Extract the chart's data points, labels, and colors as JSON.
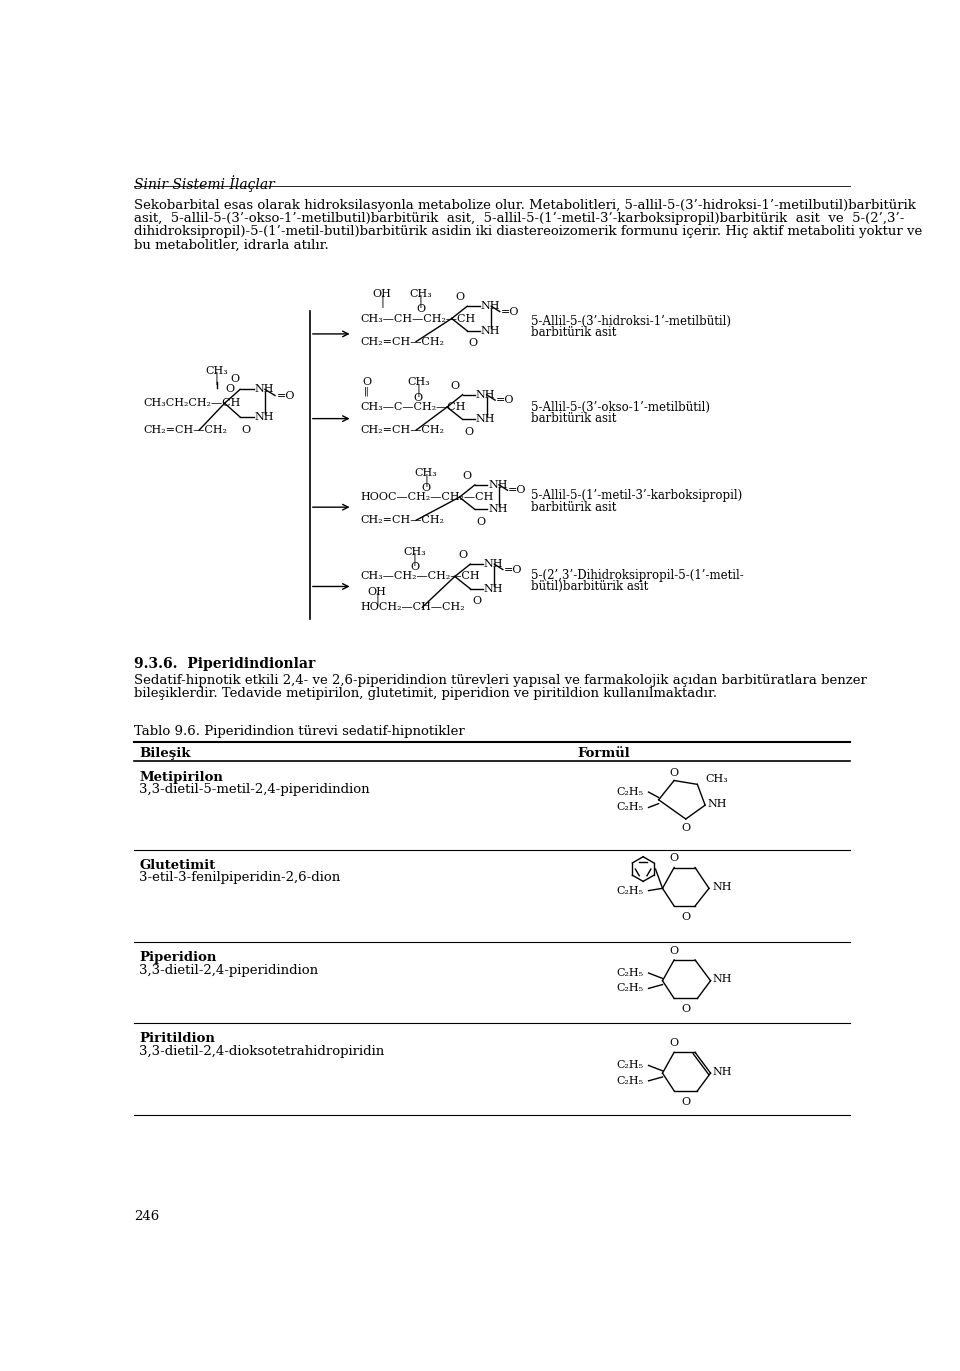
{
  "title": "Sinir Sistemi İlaçlar",
  "para1_lines": [
    "Sekobarbital esas olarak hidroksilasyonla metabolize olur. Metabolitleri, 5-allil-5-(3’-hidroksi-1’-metilbutil)barbitürik",
    "asit,  5-allil-5-(3’-okso-1’-metilbutil)barbitürik  asit,  5-allil-5-(1’-metil-3’-karboksipropil)barbitürik  asit  ve  5-(2’,3’-",
    "dihidroksipropil)-5-(1’-metil-butil)barbitürik asidin iki diastereoizomerik formunu içerir. Hiç aktif metaboliti yoktur ve",
    "bu metabolitler, idrarla atılır."
  ],
  "section_header": "9.3.6.  Piperidindionlar",
  "para2_lines": [
    "Sedatif-hipnotik etkili 2,4- ve 2,6-piperidindion türevleri yapısal ve farmakolojik açıdan barbitüratlara benzer",
    "bileşiklerdir. Tedavide metipirilon, glutetimit, piperidion ve piritildion kullanılmaktadır."
  ],
  "table_title": "Tablo 9.6. Piperidindion türevi sedatif-hipnotikler",
  "col1": "Bileşik",
  "col2": "Formül",
  "rows": [
    [
      "Metipirilon",
      "3,3-dietil-5-metil-2,4-piperidindion"
    ],
    [
      "Glutetimit",
      "3-etil-3-fenilpiperidin-2,6-dion"
    ],
    [
      "Piperidion",
      "3,3-dietil-2,4-piperidindion"
    ],
    [
      "Piritildion",
      "3,3-dietil-2,4-dioksotetrahidropiridin"
    ]
  ],
  "page_number": "246",
  "label1": [
    "5-Allil-5-(3’-hidroksi-1’-metilbütil)",
    "barbitürik asit"
  ],
  "label2": [
    "5-Allil-5-(3’-okso-1’-metilbütil)",
    "barbitürik asit"
  ],
  "label3": [
    "5-Allil-5-(1’-metil-3’-karboksipropil)",
    "barbitürik asit"
  ],
  "label4": [
    "5-(2’,3’-Dihidroksipropil-5-(1’-metil-",
    "bütil)barbitürik asit"
  ]
}
